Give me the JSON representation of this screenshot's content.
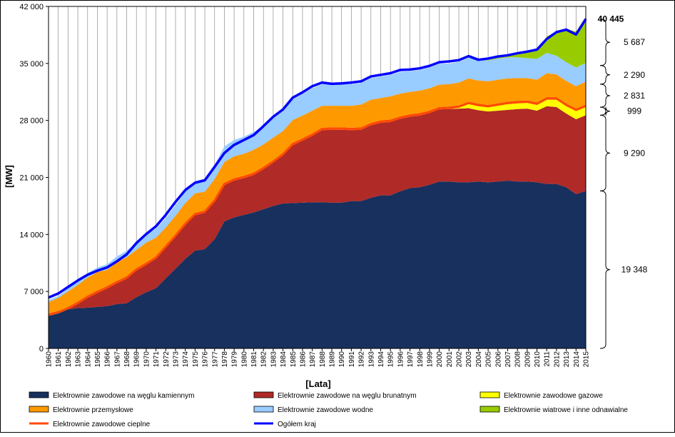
{
  "chart_data": {
    "type": "area",
    "xlabel": "[Lata]",
    "ylabel": "[MW]",
    "ylim": [
      0,
      42000
    ],
    "yticks": [
      0,
      7000,
      14000,
      21000,
      28000,
      35000,
      42000
    ],
    "ytick_labels": [
      "0",
      "7 000",
      "14 000",
      "21 000",
      "28 000",
      "35 000",
      "42 000"
    ],
    "grid": "vertical per year",
    "legend_position": "bottom",
    "x": [
      1960,
      1961,
      1962,
      1963,
      1964,
      1965,
      1966,
      1967,
      1968,
      1969,
      1970,
      1971,
      1972,
      1973,
      1974,
      1975,
      1976,
      1977,
      1978,
      1979,
      1980,
      1981,
      1982,
      1983,
      1984,
      1985,
      1986,
      1987,
      1988,
      1989,
      1990,
      1991,
      1992,
      1993,
      1994,
      1995,
      1996,
      1997,
      1998,
      1999,
      2000,
      2001,
      2002,
      2003,
      2004,
      2005,
      2006,
      2007,
      2008,
      2009,
      2010,
      2011,
      2012,
      2013,
      2014,
      2015
    ],
    "series": [
      {
        "name": "Elektrownie zawodowe na węglu kamiennym",
        "color": "#17305e",
        "values": [
          4000,
          4300,
          4800,
          4950,
          5000,
          5100,
          5200,
          5450,
          5550,
          6300,
          6900,
          7400,
          8600,
          9800,
          11000,
          12000,
          12200,
          13400,
          15600,
          16100,
          16400,
          16700,
          17100,
          17500,
          17800,
          17850,
          17900,
          17950,
          17950,
          17900,
          17900,
          18100,
          18100,
          18500,
          18800,
          18800,
          19300,
          19700,
          19800,
          20100,
          20500,
          20500,
          20400,
          20400,
          20500,
          20400,
          20500,
          20600,
          20500,
          20500,
          20400,
          20200,
          20200,
          19800,
          18950,
          19348
        ]
      },
      {
        "name": "Elektrownie zawodowe na węglu brunatnym",
        "color": "#b02a27",
        "values": [
          0,
          0,
          0,
          500,
          1200,
          1700,
          2150,
          2550,
          3000,
          3250,
          3350,
          3600,
          3750,
          3900,
          4150,
          4350,
          4450,
          4600,
          4450,
          4500,
          4500,
          4600,
          4900,
          5300,
          5900,
          7100,
          7600,
          8150,
          8850,
          8950,
          8950,
          8700,
          8750,
          8900,
          8900,
          9000,
          8900,
          8750,
          8800,
          8800,
          8850,
          8900,
          9050,
          9100,
          8750,
          8700,
          8700,
          8700,
          8900,
          8950,
          8800,
          9550,
          9450,
          9050,
          9200,
          9290
        ]
      },
      {
        "name": "Elektrownie zawodowe gazowe",
        "color": "#ffff00",
        "values": [
          0,
          0,
          0,
          0,
          0,
          0,
          0,
          0,
          0,
          0,
          0,
          0,
          0,
          0,
          0,
          0,
          0,
          0,
          0,
          0,
          0,
          0,
          0,
          0,
          0,
          0,
          0,
          0,
          0,
          0,
          0,
          0,
          0,
          0,
          0,
          0,
          0,
          0,
          0,
          0,
          0,
          0,
          100,
          500,
          500,
          500,
          600,
          700,
          700,
          700,
          700,
          800,
          900,
          900,
          1000,
          999
        ]
      },
      {
        "name": "Elektrownie zawodowe cieplne",
        "color": "#ff4a00",
        "values": [
          300,
          300,
          300,
          300,
          300,
          300,
          300,
          300,
          300,
          300,
          300,
          300,
          300,
          300,
          300,
          300,
          300,
          300,
          300,
          300,
          300,
          300,
          300,
          300,
          300,
          300,
          300,
          300,
          300,
          300,
          300,
          300,
          300,
          300,
          300,
          300,
          300,
          300,
          300,
          300,
          300,
          300,
          300,
          300,
          300,
          300,
          300,
          300,
          300,
          300,
          300,
          300,
          300,
          300,
          300,
          300
        ]
      },
      {
        "name": "Elektrownie przemysłowe",
        "color": "#ff9900",
        "values": [
          1400,
          1600,
          1900,
          2050,
          2200,
          2300,
          2000,
          2300,
          2350,
          2250,
          2450,
          2300,
          2200,
          2300,
          2400,
          2400,
          2300,
          2500,
          2550,
          2700,
          2700,
          2800,
          2750,
          2800,
          2700,
          2800,
          2800,
          2800,
          2700,
          2650,
          2650,
          2700,
          2800,
          2850,
          2750,
          2850,
          2800,
          2750,
          2750,
          2750,
          2750,
          2750,
          2800,
          2850,
          2850,
          2900,
          2900,
          2850,
          2800,
          2750,
          2800,
          2950,
          2800,
          2800,
          2750,
          2831
        ]
      },
      {
        "name": "Elektrownie zawodowe wodne",
        "color": "#99ccff",
        "values": [
          250,
          250,
          350,
          500,
          550,
          550,
          700,
          700,
          800,
          850,
          1050,
          1100,
          1150,
          1300,
          1400,
          1500,
          1600,
          1700,
          1900,
          2000,
          2100,
          2200,
          2250,
          2350,
          2450,
          2550,
          2650,
          2750,
          2650,
          2650,
          2650,
          2650,
          2650,
          2650,
          2650,
          2650,
          2650,
          2550,
          2550,
          2550,
          2550,
          2550,
          2550,
          2550,
          2550,
          2550,
          2600,
          2600,
          2550,
          2450,
          2550,
          2500,
          2300,
          2300,
          2300,
          2290
        ]
      },
      {
        "name": "Elektrownie wiatrowe i inne odnawialne",
        "color": "#99cc00",
        "values": [
          0,
          0,
          0,
          0,
          0,
          0,
          0,
          0,
          0,
          0,
          0,
          0,
          0,
          0,
          0,
          0,
          0,
          0,
          0,
          0,
          0,
          0,
          0,
          0,
          0,
          0,
          0,
          0,
          0,
          0,
          0,
          0,
          0,
          0,
          0,
          0,
          0,
          0,
          0,
          0,
          0,
          0,
          0,
          0,
          0,
          50,
          100,
          200,
          400,
          700,
          1100,
          2000,
          3000,
          4100,
          4400,
          5687
        ]
      },
      {
        "name": "Ogółem kraj",
        "color": "#0000ff",
        "type": "line",
        "values": [
          6250,
          6750,
          7550,
          8350,
          9050,
          9550,
          9950,
          10700,
          11550,
          12950,
          14050,
          15000,
          16400,
          18000,
          19450,
          20350,
          20650,
          22300,
          24000,
          25000,
          25600,
          26200,
          27300,
          28450,
          29350,
          30800,
          31450,
          32200,
          32650,
          32500,
          32550,
          32650,
          32800,
          33400,
          33600,
          33800,
          34200,
          34250,
          34400,
          34700,
          35150,
          35250,
          35400,
          35900,
          35450,
          35600,
          35850,
          36000,
          36250,
          36450,
          36700,
          38000,
          38850,
          39150,
          38550,
          40445
        ]
      }
    ],
    "annotations": [
      {
        "label": "40 445",
        "bold": true,
        "value": 40445
      },
      {
        "label": "5 687",
        "range": [
          34749,
          40445
        ]
      },
      {
        "label": "2 290",
        "range": [
          32459,
          34749
        ]
      },
      {
        "label": "2 831",
        "range": [
          29628,
          32459
        ]
      },
      {
        "label": "999",
        "range": [
          28638,
          29628
        ]
      },
      {
        "label": "9 290",
        "range": [
          19348,
          28638
        ]
      },
      {
        "label": "19 348",
        "range": [
          0,
          19348
        ]
      }
    ]
  },
  "legend": [
    {
      "label": "Elektrownie zawodowe na węglu kamiennym",
      "color": "#17305e",
      "kind": "box"
    },
    {
      "label": "Elektrownie zawodowe na węglu brunatnym",
      "color": "#b02a27",
      "kind": "box"
    },
    {
      "label": "Elektrownie zawodowe gazowe",
      "color": "#ffff00",
      "kind": "box"
    },
    {
      "label": "Elektrownie przemysłowe",
      "color": "#ff9900",
      "kind": "box"
    },
    {
      "label": "Elektrownie zawodowe wodne",
      "color": "#99ccff",
      "kind": "box"
    },
    {
      "label": "Elektrownie wiatrowe i inne odnawialne",
      "color": "#99cc00",
      "kind": "box"
    },
    {
      "label": "Elektrownie zawodowe cieplne",
      "color": "#ff4a00",
      "kind": "line"
    },
    {
      "label": "Ogółem kraj",
      "color": "#0000ff",
      "kind": "line"
    }
  ]
}
